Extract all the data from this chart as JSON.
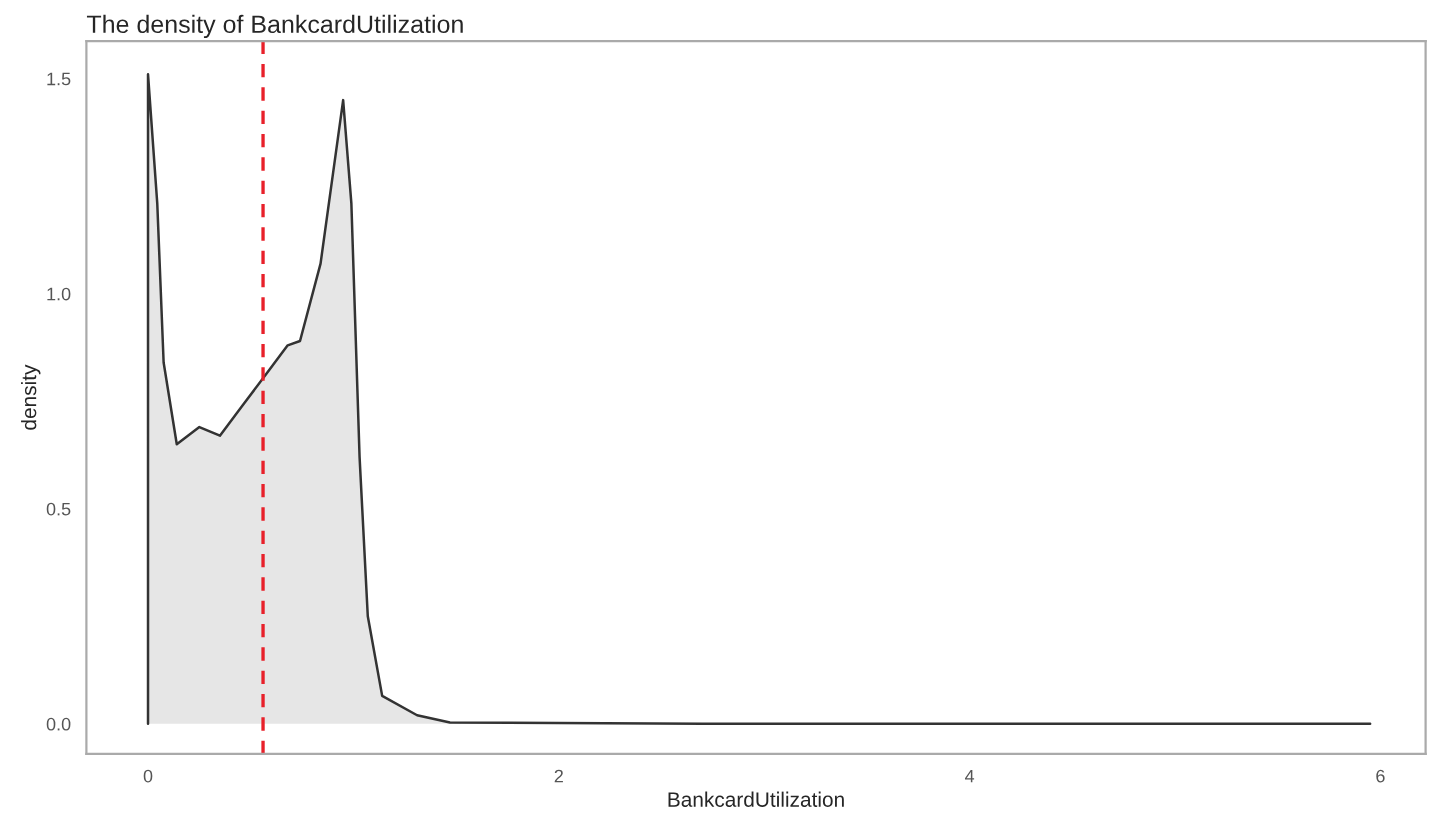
{
  "chart_data": {
    "type": "area",
    "title": "The density of BankcardUtilization",
    "xlabel": "BankcardUtilization",
    "ylabel": "density",
    "x": [
      0,
      0,
      0.045,
      0.076,
      0.14,
      0.25,
      0.35,
      0.46,
      0.57,
      0.68,
      0.74,
      0.84,
      0.95,
      0.99,
      1.03,
      1.07,
      1.14,
      1.31,
      1.47,
      2.7,
      5.95
    ],
    "series": [
      {
        "color": "#e6e6e6",
        "values": [
          0,
          1.51,
          1.21,
          0.84,
          0.65,
          0.69,
          0.67,
          0.74,
          0.81,
          0.88,
          0.89,
          1.07,
          1.45,
          1.21,
          0.62,
          0.25,
          0.065,
          0.02,
          0.003,
          0,
          0
        ]
      }
    ],
    "xlim": [
      -0.3,
      6.22
    ],
    "ylim": [
      -0.07,
      1.587
    ],
    "xticks": [
      0,
      2,
      4,
      6
    ],
    "yticks": [
      {
        "value": 0,
        "label": "0.0"
      },
      {
        "value": 0.5,
        "label": "0.5"
      },
      {
        "value": 1.0,
        "label": "1.0"
      },
      {
        "value": 1.5,
        "label": "1.5"
      }
    ],
    "ref_lines": [
      {
        "axis": "x",
        "value": 0.56,
        "color": "#e8202a",
        "line_style": "dashed"
      }
    ],
    "grid": false,
    "legend": false
  }
}
